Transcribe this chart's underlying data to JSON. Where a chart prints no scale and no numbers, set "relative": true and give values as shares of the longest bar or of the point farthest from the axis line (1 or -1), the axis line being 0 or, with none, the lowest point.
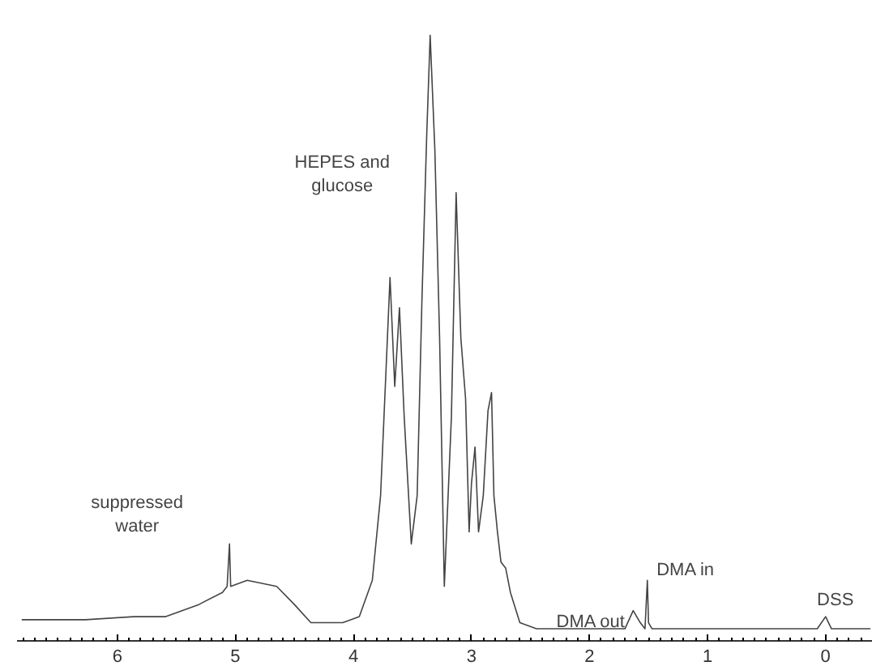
{
  "chart_data": {
    "type": "line",
    "relative": true,
    "xlim": [
      6.85,
      -0.4
    ],
    "xticks": [
      6,
      5,
      4,
      3,
      2,
      1,
      0
    ],
    "grid": false,
    "marker": "none",
    "line_style": "solid",
    "series": [
      {
        "color": "#444444",
        "x": [
          6.81,
          6.27,
          5.86,
          5.59,
          5.31,
          5.11,
          5.07,
          5.05,
          5.04,
          4.9,
          4.65,
          4.5,
          4.36,
          4.09,
          3.95,
          3.84,
          3.77,
          3.73,
          3.69,
          3.65,
          3.61,
          3.57,
          3.51,
          3.46,
          3.42,
          3.38,
          3.35,
          3.31,
          3.27,
          3.23,
          3.17,
          3.13,
          3.09,
          3.05,
          3.02,
          3.0,
          2.97,
          2.94,
          2.9,
          2.86,
          2.83,
          2.81,
          2.78,
          2.75,
          2.71,
          2.67,
          2.59,
          2.45,
          2.04,
          1.7,
          1.63,
          1.57,
          1.53,
          1.51,
          1.5,
          1.47,
          1.23,
          0.41,
          0.07,
          0.0,
          -0.05,
          -0.38
        ],
        "values": [
          0.035,
          0.035,
          0.04,
          0.04,
          0.06,
          0.08,
          0.09,
          0.16,
          0.09,
          0.1,
          0.09,
          0.06,
          0.03,
          0.03,
          0.04,
          0.1,
          0.24,
          0.42,
          0.6,
          0.42,
          0.55,
          0.37,
          0.16,
          0.24,
          0.56,
          0.83,
          1,
          0.81,
          0.5,
          0.09,
          0.37,
          0.74,
          0.5,
          0.4,
          0.18,
          0.26,
          0.32,
          0.18,
          0.24,
          0.38,
          0.41,
          0.24,
          0.18,
          0.13,
          0.12,
          0.08,
          0.03,
          0.02,
          0.02,
          0.02,
          0.05,
          0.03,
          0.02,
          0.1,
          0.03,
          0.02,
          0.02,
          0.02,
          0.02,
          0.04,
          0.02,
          0.02
        ]
      }
    ],
    "annotations": [
      {
        "text": "suppressed\nwater",
        "x": 5.05,
        "y": 0.16
      },
      "HEPES and\nglucose",
      {
        "text": "DMA out",
        "x": 1.63,
        "y": 0.05
      },
      {
        "text": "DMA in",
        "x": 1.5,
        "y": 0.1
      },
      {
        "text": "DSS",
        "x": 0.0,
        "y": 0.04
      }
    ]
  }
}
